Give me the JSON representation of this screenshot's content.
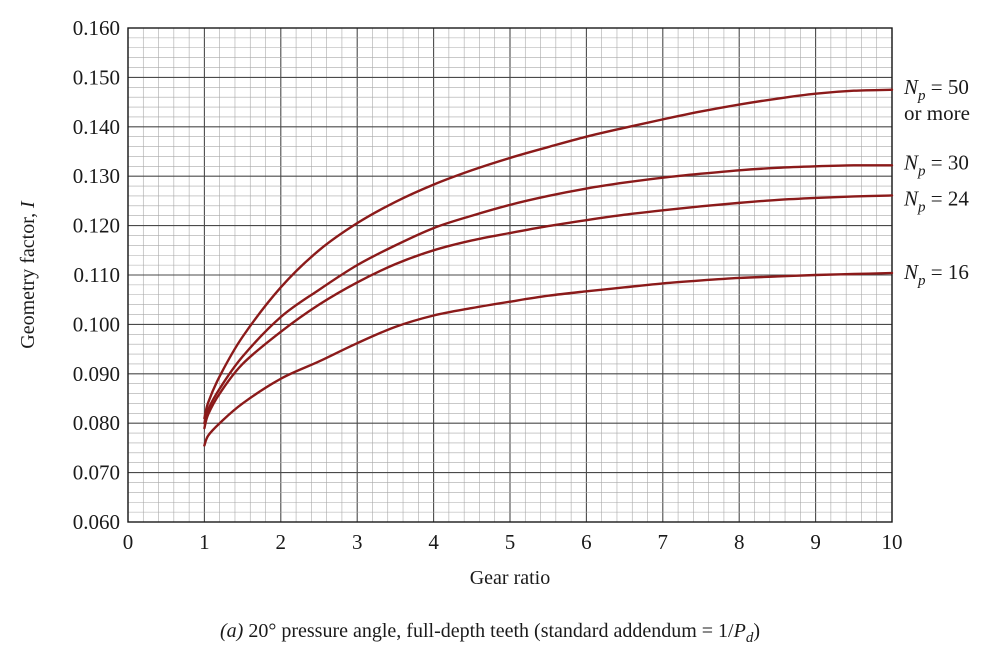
{
  "chart_data": {
    "type": "line",
    "caption": {
      "prefix": "(a)",
      "text": " 20° pressure angle, full-depth teeth (standard addendum = 1/",
      "var": "P",
      "sub": "d",
      "suffix": ")"
    },
    "xlabel": "Gear ratio",
    "ylabel": "Geometry factor, I",
    "xlim": [
      0,
      10
    ],
    "ylim": [
      0.06,
      0.16
    ],
    "x_ticks": [
      "0",
      "1",
      "2",
      "3",
      "4",
      "5",
      "6",
      "7",
      "8",
      "9",
      "10"
    ],
    "y_ticks": [
      "0.060",
      "0.070",
      "0.080",
      "0.090",
      "0.100",
      "0.110",
      "0.120",
      "0.130",
      "0.140",
      "0.150",
      "0.160"
    ],
    "grid": true,
    "line_color": "#8b1a1a",
    "series": [
      {
        "name": "Np = 50 or more",
        "label_lines": [
          "N",
          "p",
          " = 50",
          "or more"
        ],
        "x": [
          1.0,
          1.05,
          1.2,
          1.5,
          2.0,
          2.5,
          3.0,
          3.5,
          4.0,
          4.5,
          5.0,
          5.5,
          6.0,
          6.5,
          7.0,
          7.5,
          8.0,
          8.5,
          9.0,
          9.5,
          10.0
        ],
        "y": [
          0.081,
          0.0842,
          0.0895,
          0.0975,
          0.1075,
          0.115,
          0.1205,
          0.1248,
          0.1283,
          0.1312,
          0.1337,
          0.1359,
          0.138,
          0.1398,
          0.1415,
          0.1431,
          0.1445,
          0.1457,
          0.1467,
          0.1473,
          0.1475
        ]
      },
      {
        "name": "Np = 30",
        "label_lines": [
          "N",
          "p",
          " = 30"
        ],
        "x": [
          1.0,
          1.05,
          1.2,
          1.5,
          2.0,
          2.5,
          3.0,
          3.5,
          4.0,
          4.5,
          5.0,
          5.5,
          6.0,
          6.5,
          7.0,
          7.5,
          8.0,
          8.5,
          9.0,
          9.5,
          10.0
        ],
        "y": [
          0.08,
          0.0828,
          0.087,
          0.0935,
          0.1015,
          0.107,
          0.112,
          0.116,
          0.1195,
          0.122,
          0.1242,
          0.126,
          0.1275,
          0.1287,
          0.1297,
          0.1305,
          0.1312,
          0.1317,
          0.132,
          0.1322,
          0.1322
        ]
      },
      {
        "name": "Np = 24",
        "label_lines": [
          "N",
          "p",
          " = 24"
        ],
        "x": [
          1.0,
          1.05,
          1.2,
          1.5,
          2.0,
          2.5,
          3.0,
          3.5,
          4.0,
          4.5,
          5.0,
          5.5,
          6.0,
          6.5,
          7.0,
          7.5,
          8.0,
          8.5,
          9.0,
          9.5,
          10.0
        ],
        "y": [
          0.079,
          0.0818,
          0.086,
          0.092,
          0.0985,
          0.104,
          0.1085,
          0.1122,
          0.115,
          0.117,
          0.1185,
          0.1199,
          0.1211,
          0.1222,
          0.1231,
          0.1239,
          0.1246,
          0.1252,
          0.1256,
          0.1259,
          0.1261
        ]
      },
      {
        "name": "Np = 16",
        "label_lines": [
          "N",
          "p",
          " = 16"
        ],
        "x": [
          1.0,
          1.05,
          1.2,
          1.5,
          2.0,
          2.5,
          3.0,
          3.5,
          4.0,
          4.5,
          5.0,
          5.5,
          6.0,
          6.5,
          7.0,
          7.5,
          8.0,
          8.5,
          9.0,
          9.5,
          10.0
        ],
        "y": [
          0.0755,
          0.0775,
          0.08,
          0.084,
          0.089,
          0.0925,
          0.0962,
          0.0995,
          0.1018,
          0.1033,
          0.1046,
          0.1058,
          0.1067,
          0.1075,
          0.1083,
          0.1089,
          0.1094,
          0.1097,
          0.11,
          0.1102,
          0.1104
        ]
      }
    ]
  }
}
